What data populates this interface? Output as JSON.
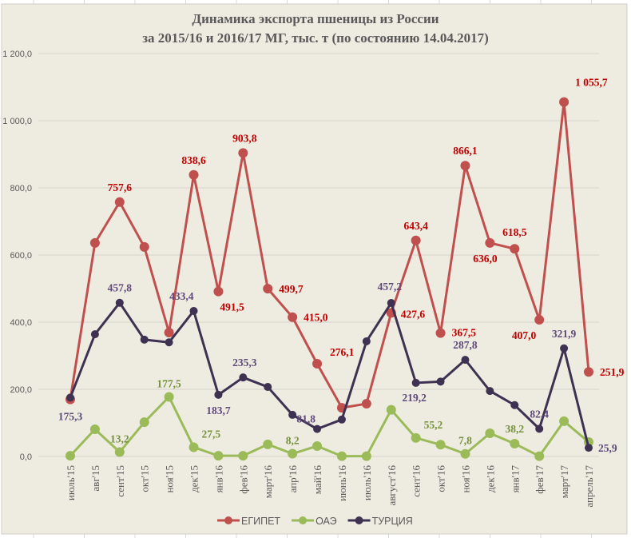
{
  "chart_data": {
    "type": "line",
    "title_line1": "Динамика экспорта пшеницы из России",
    "title_line2": "за  2015/16 и 2016/17 МГ, тыс. т (по состоянию 14.04.2017)",
    "xlabel": "",
    "ylabel": "",
    "ylim": [
      0,
      1200
    ],
    "yticks": [
      0,
      200,
      400,
      600,
      800,
      1000,
      1200
    ],
    "ytick_labels": [
      "0,0",
      "200,0",
      "400,0",
      "600,0",
      "800,0",
      "1 000,0",
      "1 200,0"
    ],
    "grid": true,
    "legend_position": "bottom",
    "categories": [
      "июль'15",
      "авг'15",
      "сент'15",
      "окт'15",
      "ноя'15",
      "дек'15",
      "янв'16",
      "фев'16",
      "март'16",
      "апр'16",
      "май'16",
      "июнь'16",
      "июль'16",
      "август'16",
      "сент'16",
      "окт'16",
      "ноя'16",
      "дек'16",
      "янв'17",
      "фев'17",
      "март'17",
      "апрель'17"
    ],
    "series": [
      {
        "name": "ЕГИПЕТ",
        "color": "#C0504D",
        "label_color": "#C00000",
        "values": [
          170,
          636,
          757.6,
          624,
          369,
          838.6,
          491.5,
          903.8,
          499.7,
          415.0,
          276.1,
          145,
          157,
          427.6,
          643.4,
          367.5,
          866.1,
          636.0,
          618.5,
          407.0,
          1055.7,
          251.9
        ],
        "labels": [
          null,
          null,
          "757,6",
          null,
          null,
          "838,6",
          "491,5",
          "903,8",
          "499,7",
          "415,0",
          "276,1",
          null,
          null,
          "427,6",
          "643,4",
          "367,5",
          "866,1",
          "636,0",
          "618,5",
          "407,0",
          "1 055,7",
          "251,9"
        ]
      },
      {
        "name": "ОАЭ",
        "color": "#9BBB59",
        "label_color": "#76923C",
        "values": [
          2,
          81,
          13.2,
          102,
          177.5,
          27.5,
          2,
          2,
          36,
          8.2,
          31,
          1,
          1,
          139,
          55.2,
          35,
          7.8,
          69,
          38.2,
          1,
          105,
          43
        ],
        "labels": [
          null,
          null,
          "13,2",
          null,
          "177,5",
          "27,5",
          null,
          null,
          null,
          "8,2",
          null,
          null,
          null,
          null,
          "55,2",
          null,
          "7,8",
          null,
          "38,2",
          null,
          null,
          null
        ]
      },
      {
        "name": "ТУРЦИЯ",
        "color": "#3F3151",
        "label_color": "#5F497A",
        "values": [
          175.3,
          364,
          457.8,
          348,
          340,
          433.4,
          183.7,
          235.3,
          207,
          124,
          81.8,
          110,
          343,
          457.2,
          219.2,
          223,
          287.8,
          195,
          153,
          82.4,
          321.9,
          25.9
        ],
        "labels": [
          "175,3",
          null,
          "457,8",
          null,
          null,
          "433,4",
          "183,7",
          "235,3",
          null,
          null,
          "81,8",
          null,
          null,
          "457,2",
          "219,2",
          null,
          "287,8",
          null,
          null,
          "82,4",
          "321,9",
          "25,9"
        ]
      }
    ]
  }
}
